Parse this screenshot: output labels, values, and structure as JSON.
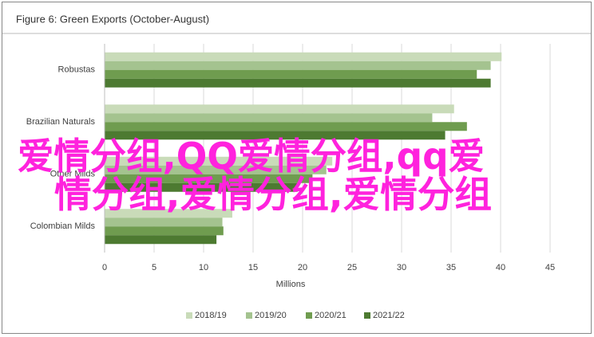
{
  "chart_data": {
    "type": "hbar",
    "title": "Figure 6: Green Exports (October-August)",
    "x_label": "Millions",
    "categories": [
      "Robustas",
      "Brazilian Naturals",
      "Other Milds",
      "Colombian Milds"
    ],
    "series": [
      {
        "name": "2018/19",
        "color": "#c9dbb9",
        "values": [
          40.1,
          35.3,
          23.0,
          12.9
        ]
      },
      {
        "name": "2019/20",
        "color": "#a4c38f",
        "values": [
          39.0,
          33.1,
          22.4,
          11.9
        ]
      },
      {
        "name": "2020/21",
        "color": "#6f9c4f",
        "values": [
          37.6,
          36.6,
          21.0,
          12.0
        ]
      },
      {
        "name": "2021/22",
        "color": "#4d7a31",
        "values": [
          39.0,
          34.4,
          19.5,
          11.3
        ]
      }
    ],
    "xlim": [
      0,
      45
    ],
    "xticks": [
      0,
      5,
      10,
      15,
      20,
      25,
      30,
      35,
      40,
      45
    ],
    "grid": true,
    "legend": "bottom",
    "annotations": [
      "爱情分组,QQ爱情分组,qq爱",
      "情分组,爱情分组,爱情分组"
    ]
  }
}
